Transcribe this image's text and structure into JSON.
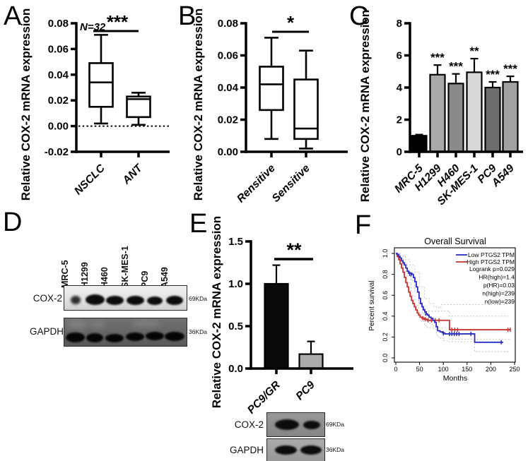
{
  "panel_letters": [
    "A",
    "B",
    "C",
    "D",
    "E",
    "F"
  ],
  "chart_data": [
    {
      "id": "A",
      "type": "box",
      "ylabel": "Relative COX-2 mRNA expression",
      "ylim": [
        -0.02,
        0.08
      ],
      "yticks": [
        "-0.02",
        "0.00",
        "0.02",
        "0.04",
        "0.06",
        "0.08"
      ],
      "annotation": "N=32",
      "significance": "***",
      "zero_line_dotted": true,
      "categories": [
        "NSCLC",
        "ANT"
      ],
      "boxes": [
        {
          "whisker_low": 0.002,
          "q1": 0.015,
          "median": 0.034,
          "q3": 0.049,
          "whisker_high": 0.071
        },
        {
          "whisker_low": 0.001,
          "q1": 0.007,
          "median": 0.021,
          "q3": 0.023,
          "whisker_high": 0.026
        }
      ]
    },
    {
      "id": "B",
      "type": "box",
      "ylabel": "Relative COX-2 mRNA expression",
      "ylim": [
        0,
        0.08
      ],
      "yticks": [
        "0.00",
        "0.02",
        "0.04",
        "0.06",
        "0.08"
      ],
      "significance": "*",
      "zero_line_dotted": false,
      "categories": [
        "Rensitive",
        "Sensitive"
      ],
      "boxes": [
        {
          "whisker_low": 0.008,
          "q1": 0.026,
          "median": 0.042,
          "q3": 0.053,
          "whisker_high": 0.071
        },
        {
          "whisker_low": 0.002,
          "q1": 0.008,
          "median": 0.0145,
          "q3": 0.045,
          "whisker_high": 0.063
        }
      ]
    },
    {
      "id": "C",
      "type": "bar",
      "ylabel": "Relative COX-2 mRNA expression",
      "ylim": [
        0,
        8
      ],
      "yticks": [
        "0",
        "2",
        "4",
        "6",
        "8"
      ],
      "categories": [
        "MRC-5",
        "H1299",
        "H460",
        "SK-MES-1",
        "PC9",
        "A549"
      ],
      "values": [
        1.0,
        4.8,
        4.25,
        4.95,
        4.0,
        4.35
      ],
      "errors": [
        0.07,
        0.6,
        0.6,
        0.85,
        0.35,
        0.35
      ],
      "sig_labels": [
        "",
        "***",
        "***",
        "**",
        "***",
        "***"
      ],
      "bar_colors": [
        "#000000",
        "#a9a9a9",
        "#8a8a8a",
        "#d8d8d8",
        "#6e6e6e",
        "#a1a1a1"
      ]
    },
    {
      "id": "E",
      "type": "bar",
      "ylabel": "Relative COX-2 mRNA expression",
      "ylim": [
        0,
        1.5
      ],
      "yticks": [
        "0.0",
        "0.5",
        "1.0",
        "1.5"
      ],
      "categories": [
        "PC9/GR",
        "PC9"
      ],
      "values": [
        1.0,
        0.17
      ],
      "errors": [
        0.22,
        0.15
      ],
      "sig_labels": [
        "",
        ""
      ],
      "pair_significance": "**",
      "bar_colors": [
        "#0a0a0a",
        "#ababab"
      ]
    },
    {
      "id": "F",
      "type": "km",
      "title": "Overall Survival",
      "xlabel": "Months",
      "ylabel": "Percent survival",
      "xlim": [
        0,
        250
      ],
      "xticks": [
        "0",
        "50",
        "100",
        "150",
        "200",
        "250"
      ],
      "ylim": [
        0,
        1
      ],
      "yticks": [
        "0.0",
        "0.2",
        "0.4",
        "0.6",
        "0.8",
        "1.0"
      ],
      "legend": [
        {
          "label": "Low PTGS2 TPM",
          "color": "#2b2bc8"
        },
        {
          "label": "High PTGS2 TPM",
          "color": "#cc3333"
        }
      ],
      "stats": [
        "Logrank p=0.029",
        "HR(high)=1.4",
        "p(HR)=0.03",
        "n(high)=239",
        "n(low)=239"
      ],
      "ci_color": "#bcbcbc",
      "series": [
        {
          "name": "Low PTGS2 TPM",
          "color": "#2b2bc8",
          "steps": [
            [
              0,
              1.0
            ],
            [
              3,
              0.99
            ],
            [
              6,
              0.97
            ],
            [
              9,
              0.955
            ],
            [
              12,
              0.93
            ],
            [
              15,
              0.91
            ],
            [
              18,
              0.89
            ],
            [
              21,
              0.86
            ],
            [
              24,
              0.83
            ],
            [
              27,
              0.81
            ],
            [
              34,
              0.8
            ],
            [
              37,
              0.77
            ],
            [
              40,
              0.73
            ],
            [
              43,
              0.68
            ],
            [
              46,
              0.63
            ],
            [
              49,
              0.57
            ],
            [
              52,
              0.52
            ],
            [
              55,
              0.49
            ],
            [
              58,
              0.46
            ],
            [
              61,
              0.44
            ],
            [
              64,
              0.42
            ],
            [
              67,
              0.41
            ],
            [
              70,
              0.39
            ],
            [
              74,
              0.38
            ],
            [
              78,
              0.36
            ],
            [
              82,
              0.34
            ],
            [
              85,
              0.3
            ],
            [
              88,
              0.26
            ],
            [
              93,
              0.25
            ],
            [
              98,
              0.24
            ],
            [
              103,
              0.23
            ],
            [
              162,
              0.23
            ],
            [
              166,
              0.15
            ],
            [
              226,
              0.15
            ]
          ],
          "censors": [
            [
              29,
              0.805
            ],
            [
              32,
              0.8
            ],
            [
              63,
              0.425
            ],
            [
              100,
              0.235
            ],
            [
              113,
              0.23
            ],
            [
              118,
              0.23
            ],
            [
              123,
              0.23
            ],
            [
              128,
              0.23
            ],
            [
              133,
              0.23
            ],
            [
              158,
              0.23
            ],
            [
              222,
              0.15
            ]
          ]
        },
        {
          "name": "High PTGS2 TPM",
          "color": "#cc3333",
          "steps": [
            [
              0,
              1.0
            ],
            [
              3,
              0.97
            ],
            [
              6,
              0.94
            ],
            [
              9,
              0.9
            ],
            [
              12,
              0.86
            ],
            [
              15,
              0.82
            ],
            [
              18,
              0.77
            ],
            [
              21,
              0.72
            ],
            [
              24,
              0.68
            ],
            [
              27,
              0.63
            ],
            [
              30,
              0.59
            ],
            [
              33,
              0.55
            ],
            [
              36,
              0.52
            ],
            [
              39,
              0.49
            ],
            [
              42,
              0.46
            ],
            [
              45,
              0.43
            ],
            [
              48,
              0.41
            ],
            [
              51,
              0.39
            ],
            [
              55,
              0.38
            ],
            [
              60,
              0.37
            ],
            [
              66,
              0.36
            ],
            [
              110,
              0.36
            ],
            [
              113,
              0.27
            ],
            [
              242,
              0.27
            ]
          ],
          "censors": [
            [
              57,
              0.38
            ],
            [
              62,
              0.37
            ],
            [
              68,
              0.36
            ],
            [
              75,
              0.36
            ],
            [
              83,
              0.36
            ],
            [
              91,
              0.36
            ],
            [
              118,
              0.27
            ],
            [
              124,
              0.27
            ],
            [
              130,
              0.27
            ],
            [
              236,
              0.27
            ],
            [
              241,
              0.27
            ]
          ]
        }
      ],
      "ci_curves": [
        [
          [
            0,
            1.0
          ],
          [
            10,
            0.98
          ],
          [
            20,
            0.94
          ],
          [
            30,
            0.89
          ],
          [
            40,
            0.82
          ],
          [
            50,
            0.68
          ],
          [
            60,
            0.57
          ],
          [
            70,
            0.52
          ],
          [
            80,
            0.49
          ],
          [
            90,
            0.48
          ],
          [
            95,
            0.51
          ],
          [
            240,
            0.51
          ]
        ],
        [
          [
            0,
            1.0
          ],
          [
            8,
            0.97
          ],
          [
            16,
            0.91
          ],
          [
            24,
            0.83
          ],
          [
            32,
            0.74
          ],
          [
            40,
            0.63
          ],
          [
            48,
            0.53
          ],
          [
            56,
            0.47
          ],
          [
            64,
            0.45
          ],
          [
            110,
            0.45
          ],
          [
            113,
            0.4
          ],
          [
            240,
            0.4
          ]
        ],
        [
          [
            0,
            0.99
          ],
          [
            8,
            0.95
          ],
          [
            16,
            0.89
          ],
          [
            24,
            0.81
          ],
          [
            32,
            0.75
          ],
          [
            40,
            0.65
          ],
          [
            48,
            0.52
          ],
          [
            56,
            0.42
          ],
          [
            64,
            0.36
          ],
          [
            72,
            0.32
          ],
          [
            80,
            0.28
          ],
          [
            85,
            0.22
          ],
          [
            90,
            0.19
          ],
          [
            100,
            0.165
          ],
          [
            110,
            0.155
          ],
          [
            160,
            0.155
          ],
          [
            166,
            0.06
          ],
          [
            240,
            0.06
          ]
        ],
        [
          [
            0,
            0.98
          ],
          [
            8,
            0.92
          ],
          [
            16,
            0.83
          ],
          [
            24,
            0.72
          ],
          [
            32,
            0.6
          ],
          [
            40,
            0.5
          ],
          [
            48,
            0.41
          ],
          [
            54,
            0.35
          ],
          [
            60,
            0.31
          ],
          [
            66,
            0.29
          ],
          [
            110,
            0.29
          ],
          [
            113,
            0.18
          ],
          [
            240,
            0.18
          ]
        ]
      ]
    }
  ],
  "blots": {
    "d": {
      "lanes": [
        "MRC-5",
        "H1299",
        "H460",
        "SK-MES-1",
        "PC9",
        "A549"
      ],
      "rows": [
        {
          "protein": "COX-2",
          "size": "69KDa"
        },
        {
          "protein": "GAPDH",
          "size": "36KDa"
        }
      ]
    },
    "e": {
      "rows": [
        {
          "protein": "COX-2",
          "size": "69KDa"
        },
        {
          "protein": "GAPDH",
          "size": "36KDa"
        }
      ]
    }
  }
}
